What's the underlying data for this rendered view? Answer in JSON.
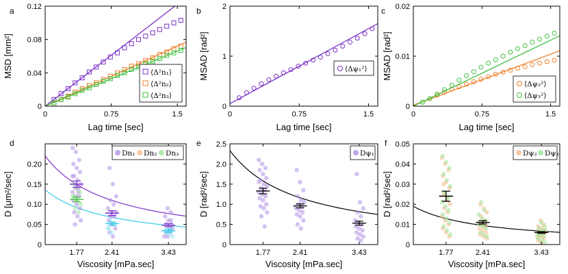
{
  "colors": {
    "purple": "#7b2fc9",
    "orange": "#f07f2a",
    "green": "#3fc23f",
    "cyan": "#35c7e8",
    "light_purple": "#b090e6",
    "light_orange": "#f9b98a",
    "light_green": "#9fe59a"
  },
  "chart_data": [
    {
      "id": "a",
      "letter": "a",
      "type": "line+scatter",
      "ylabel": "MSD [mm²]",
      "xlabel": "Lag time [sec]",
      "xlim": [
        0,
        1.6
      ],
      "ylim": [
        0,
        0.12
      ],
      "xticks": [
        0,
        0.75,
        1.5
      ],
      "xticklabels": [
        "0",
        "0.75",
        "1.5"
      ],
      "yticks": [
        0,
        0.04,
        0.08,
        0.12
      ],
      "yticklabels": [
        "0",
        "0.04",
        "0.08",
        "0.12"
      ],
      "legend_loc": "bottom-right",
      "series": [
        {
          "name": "⟨Δ²n₁⟩",
          "color": "purple",
          "slope": 0.0815,
          "x": [
            0.1,
            0.18,
            0.26,
            0.34,
            0.42,
            0.5,
            0.58,
            0.66,
            0.74,
            0.82,
            0.9,
            0.98,
            1.06,
            1.14,
            1.22,
            1.3,
            1.38,
            1.46,
            1.54
          ],
          "y": [
            0.008,
            0.015,
            0.021,
            0.028,
            0.034,
            0.041,
            0.047,
            0.053,
            0.059,
            0.064,
            0.07,
            0.075,
            0.08,
            0.084,
            0.088,
            0.092,
            0.096,
            0.1,
            0.103
          ]
        },
        {
          "name": "⟨Δ²n₂⟩",
          "color": "orange",
          "slope": 0.048,
          "x": [
            0.1,
            0.18,
            0.26,
            0.34,
            0.42,
            0.5,
            0.58,
            0.66,
            0.74,
            0.82,
            0.9,
            0.98,
            1.06,
            1.14,
            1.22,
            1.3,
            1.38,
            1.46,
            1.54
          ],
          "y": [
            0.004,
            0.008,
            0.012,
            0.017,
            0.021,
            0.025,
            0.028,
            0.032,
            0.036,
            0.04,
            0.044,
            0.048,
            0.051,
            0.055,
            0.058,
            0.062,
            0.065,
            0.069,
            0.072
          ]
        },
        {
          "name": "⟨Δ²n₃⟩",
          "color": "green",
          "slope": 0.044,
          "x": [
            0.1,
            0.18,
            0.26,
            0.34,
            0.42,
            0.5,
            0.58,
            0.66,
            0.74,
            0.82,
            0.9,
            0.98,
            1.06,
            1.14,
            1.22,
            1.3,
            1.38,
            1.46,
            1.54
          ],
          "y": [
            0.004,
            0.008,
            0.011,
            0.015,
            0.019,
            0.022,
            0.026,
            0.03,
            0.033,
            0.037,
            0.04,
            0.044,
            0.047,
            0.051,
            0.054,
            0.057,
            0.061,
            0.064,
            0.067
          ]
        }
      ]
    },
    {
      "id": "b",
      "letter": "b",
      "type": "line+scatter",
      "ylabel": "MSAD [rad²]",
      "xlabel": "Lag time [sec]",
      "xlim": [
        0,
        1.6
      ],
      "ylim": [
        0,
        2
      ],
      "xticks": [
        0,
        0.75,
        1.5
      ],
      "xticklabels": [
        "0",
        "0.75",
        "1.5"
      ],
      "yticks": [
        0,
        1,
        2
      ],
      "yticklabels": [
        "0",
        "1",
        "2"
      ],
      "legend_loc": "middle-right",
      "series": [
        {
          "name": "⟨Δψ₁²⟩",
          "color": "purple",
          "slope": 1.0,
          "intercept": 0.05,
          "x": [
            0.1,
            0.18,
            0.26,
            0.34,
            0.42,
            0.5,
            0.58,
            0.66,
            0.74,
            0.82,
            0.9,
            0.98,
            1.06,
            1.14,
            1.22,
            1.3,
            1.38,
            1.46,
            1.54
          ],
          "y": [
            0.17,
            0.27,
            0.36,
            0.45,
            0.53,
            0.6,
            0.67,
            0.73,
            0.8,
            0.86,
            0.92,
            0.98,
            1.05,
            1.12,
            1.2,
            1.28,
            1.36,
            1.45,
            1.55
          ]
        }
      ]
    },
    {
      "id": "c",
      "letter": "c",
      "type": "line+scatter",
      "ylabel": "MSAD [rad²]",
      "xlabel": "Lag time [sec]",
      "xlim": [
        0,
        1.6
      ],
      "ylim": [
        0,
        0.02
      ],
      "xticks": [
        0,
        0.75,
        1.5
      ],
      "xticklabels": [
        "0",
        "0.75",
        "1.5"
      ],
      "yticks": [
        0,
        0.01,
        0.02
      ],
      "yticklabels": [
        "0",
        "0.01",
        "0.02"
      ],
      "legend_loc": "bottom-right",
      "series": [
        {
          "name": "⟨Δψ₂²⟩",
          "color": "orange",
          "slope": 0.0068,
          "intercept": 0.0002,
          "x": [
            0.1,
            0.18,
            0.26,
            0.34,
            0.42,
            0.5,
            0.58,
            0.66,
            0.74,
            0.82,
            0.9,
            0.98,
            1.06,
            1.14,
            1.22,
            1.3,
            1.38,
            1.46,
            1.54
          ],
          "y": [
            0.0008,
            0.0015,
            0.0022,
            0.0028,
            0.0034,
            0.0039,
            0.0044,
            0.0049,
            0.0054,
            0.0059,
            0.0064,
            0.0068,
            0.0072,
            0.0076,
            0.0079,
            0.0083,
            0.0086,
            0.0089,
            0.0092
          ]
        },
        {
          "name": "⟨Δψ₃²⟩",
          "color": "green",
          "slope": 0.0088,
          "intercept": 0.0,
          "x": [
            0.1,
            0.18,
            0.26,
            0.34,
            0.42,
            0.5,
            0.58,
            0.66,
            0.74,
            0.82,
            0.9,
            0.98,
            1.06,
            1.14,
            1.22,
            1.3,
            1.38,
            1.46,
            1.54
          ],
          "y": [
            0.0008,
            0.0015,
            0.0024,
            0.0033,
            0.0042,
            0.0052,
            0.0061,
            0.0069,
            0.0078,
            0.0086,
            0.0093,
            0.01,
            0.0108,
            0.0115,
            0.0121,
            0.0128,
            0.0134,
            0.014,
            0.0146
          ]
        }
      ]
    },
    {
      "id": "d",
      "letter": "d",
      "type": "scatter+fit",
      "ylabel": "D [μm²/sec]",
      "xlabel": "Viscosity [mPa.sec]",
      "xlim": [
        1.2,
        3.75
      ],
      "ylim": [
        0,
        0.25
      ],
      "xticks": [
        1.77,
        2.41,
        3.43
      ],
      "xticklabels": [
        "1.77",
        "2.41",
        "3.43"
      ],
      "yticks": [
        0,
        0.05,
        0.1,
        0.15,
        0.2
      ],
      "yticklabels": [
        "0",
        "0.05",
        "0.10",
        "0.15",
        "0.20"
      ],
      "legend_loc": "top-right",
      "legend": [
        "Dn₁",
        "Dn₂",
        "Dn₃"
      ],
      "legend_colors": [
        "purple",
        "orange",
        "green"
      ],
      "fits": [
        {
          "color": "purple",
          "k": 0.264
        },
        {
          "color": "cyan",
          "k": 0.163
        }
      ],
      "groups": [
        {
          "x": 1.77,
          "mean": 0.15,
          "err": 0.008,
          "color": "purple",
          "points": [
            0.24,
            0.23,
            0.21,
            0.2,
            0.19,
            0.18,
            0.17,
            0.16,
            0.15,
            0.15,
            0.14,
            0.13,
            0.12,
            0.12,
            0.11,
            0.1,
            0.09,
            0.08,
            0.07,
            0.06,
            0.05,
            0.13,
            0.17,
            0.14
          ]
        },
        {
          "x": 1.77,
          "mean": 0.112,
          "err": 0.006,
          "color": "green",
          "points": [
            0.15,
            0.14,
            0.13,
            0.12,
            0.11,
            0.1,
            0.09,
            0.08,
            0.12,
            0.11
          ]
        },
        {
          "x": 2.41,
          "mean": 0.078,
          "err": 0.006,
          "color": "purple",
          "points": [
            0.19,
            0.15,
            0.12,
            0.11,
            0.1,
            0.09,
            0.08,
            0.07,
            0.06,
            0.05,
            0.04,
            0.03,
            0.02,
            0.08,
            0.07
          ]
        },
        {
          "x": 2.41,
          "mean": 0.052,
          "err": 0.004,
          "color": "cyan",
          "points": [
            0.06,
            0.05,
            0.04,
            0.03,
            0.05,
            0.04
          ]
        },
        {
          "x": 3.43,
          "mean": 0.048,
          "err": 0.004,
          "color": "purple",
          "points": [
            0.09,
            0.08,
            0.07,
            0.06,
            0.05,
            0.05,
            0.04,
            0.04,
            0.03,
            0.03,
            0.02,
            0.02,
            0.06
          ]
        },
        {
          "x": 3.43,
          "mean": 0.034,
          "err": 0.004,
          "color": "cyan",
          "points": [
            0.04,
            0.035,
            0.03,
            0.025,
            0.02,
            0.03
          ]
        }
      ]
    },
    {
      "id": "e",
      "letter": "e",
      "type": "scatter+fit",
      "ylabel": "D [rad²/sec]",
      "xlabel": "Viscosity [mPa.sec]",
      "xlim": [
        1.2,
        3.75
      ],
      "ylim": [
        0,
        2.5
      ],
      "xticks": [
        1.77,
        2.41,
        3.43
      ],
      "xticklabels": [
        "1.77",
        "2.41",
        "3.43"
      ],
      "yticks": [
        0,
        0.5,
        1,
        1.5,
        2,
        2.5
      ],
      "yticklabels": [
        "0",
        "0.5",
        "1.0",
        "1.5",
        "2.0",
        "2.5"
      ],
      "legend_loc": "top-right",
      "legend": [
        "Dψ₁"
      ],
      "legend_colors": [
        "purple"
      ],
      "fits": [
        {
          "color": "black",
          "k": 2.8
        }
      ],
      "groups": [
        {
          "x": 1.77,
          "mean": 1.33,
          "err": 0.07,
          "color": "purple",
          "points": [
            2.1,
            2.0,
            1.9,
            1.85,
            1.75,
            1.65,
            1.6,
            1.5,
            1.45,
            1.4,
            1.35,
            1.3,
            1.25,
            1.2,
            1.15,
            1.1,
            1.0,
            0.95,
            0.9,
            0.8,
            0.7,
            0.45,
            1.55
          ]
        },
        {
          "x": 2.41,
          "mean": 0.96,
          "err": 0.05,
          "color": "purple",
          "points": [
            1.85,
            1.55,
            1.35,
            1.2,
            1.1,
            1.05,
            1.0,
            0.95,
            0.9,
            0.85,
            0.8,
            0.75,
            0.7,
            0.6,
            0.5,
            0.4
          ]
        },
        {
          "x": 3.43,
          "mean": 0.53,
          "err": 0.05,
          "color": "purple",
          "points": [
            1.75,
            1.05,
            0.9,
            0.8,
            0.7,
            0.6,
            0.55,
            0.5,
            0.45,
            0.4,
            0.35,
            0.3,
            0.25,
            0.2,
            0.15,
            0.1
          ]
        }
      ]
    },
    {
      "id": "f",
      "letter": "f",
      "type": "scatter+fit",
      "ylabel": "D [rad²/sec]",
      "xlabel": "Viscosity [mPa.sec]",
      "xlim": [
        1.2,
        3.75
      ],
      "ylim": [
        0,
        0.05
      ],
      "xticks": [
        1.77,
        2.41,
        3.43
      ],
      "xticklabels": [
        "1.77",
        "2.41",
        "3.43"
      ],
      "yticks": [
        0,
        0.01,
        0.02,
        0.03,
        0.04,
        0.05
      ],
      "yticklabels": [
        "0",
        "0.01",
        "0.02",
        "0.03",
        "0.04",
        "0.05"
      ],
      "legend_loc": "top-right",
      "legend": [
        "Dψ₂",
        "Dψ₃"
      ],
      "legend_colors": [
        "orange",
        "green"
      ],
      "fits": [
        {
          "color": "black",
          "k": 0.0228
        }
      ],
      "groups": [
        {
          "x": 1.77,
          "mean": 0.024,
          "err": 0.0025,
          "color": "orange",
          "points": [
            0.043,
            0.04,
            0.037,
            0.034,
            0.031,
            0.028,
            0.025,
            0.022,
            0.02,
            0.018,
            0.016,
            0.014,
            0.012,
            0.01,
            0.008,
            0.006,
            0.004,
            0.03
          ]
        },
        {
          "x": 1.77,
          "mean": 0.024,
          "err": 0.0025,
          "color": "green",
          "points": [
            0.044,
            0.041,
            0.038,
            0.035,
            0.032,
            0.029,
            0.026,
            0.023,
            0.021,
            0.019,
            0.017,
            0.015,
            0.013,
            0.011,
            0.009,
            0.007,
            0.005
          ]
        },
        {
          "x": 2.41,
          "mean": 0.011,
          "err": 0.0008,
          "color": "orange",
          "points": [
            0.02,
            0.018,
            0.016,
            0.014,
            0.012,
            0.011,
            0.01,
            0.009,
            0.008,
            0.007,
            0.006,
            0.005,
            0.004,
            0.003
          ]
        },
        {
          "x": 2.41,
          "mean": 0.011,
          "err": 0.0008,
          "color": "green",
          "points": [
            0.021,
            0.017,
            0.015,
            0.013,
            0.012,
            0.01,
            0.009,
            0.008,
            0.006,
            0.005,
            0.004
          ]
        },
        {
          "x": 3.43,
          "mean": 0.006,
          "err": 0.0004,
          "color": "orange",
          "points": [
            0.012,
            0.01,
            0.009,
            0.008,
            0.007,
            0.007,
            0.006,
            0.006,
            0.005,
            0.005,
            0.004,
            0.004,
            0.003,
            0.002,
            0.001
          ]
        },
        {
          "x": 3.43,
          "mean": 0.006,
          "err": 0.0004,
          "color": "green",
          "points": [
            0.011,
            0.009,
            0.008,
            0.007,
            0.007,
            0.006,
            0.006,
            0.005,
            0.005,
            0.004,
            0.003,
            0.002,
            0.001
          ]
        }
      ]
    }
  ]
}
